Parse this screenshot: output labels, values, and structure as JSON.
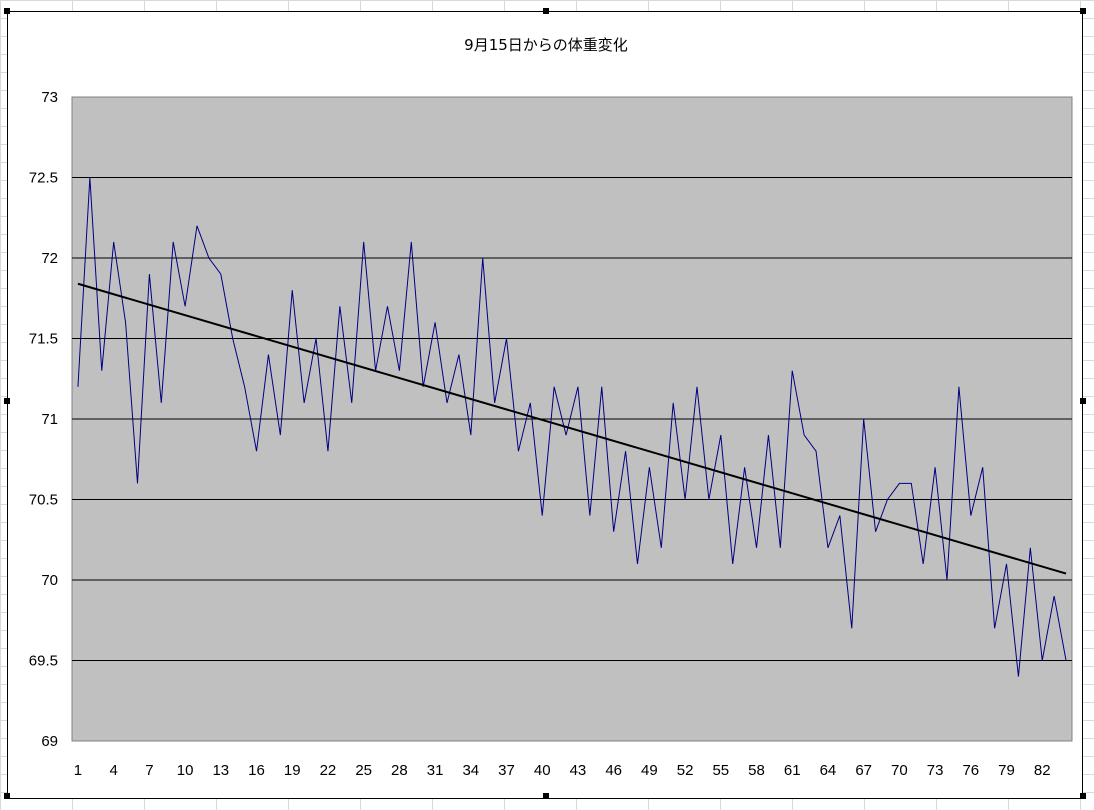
{
  "chart_data": {
    "type": "line",
    "title": "9月15日からの体重変化",
    "xlabel": "",
    "ylabel": "",
    "ylim": [
      69,
      73
    ],
    "y_ticks": [
      "73",
      "72.5",
      "72",
      "71.5",
      "71",
      "70.5",
      "70",
      "69.5",
      "69"
    ],
    "x_ticks": [
      "1",
      "4",
      "7",
      "10",
      "13",
      "16",
      "19",
      "22",
      "25",
      "28",
      "31",
      "34",
      "37",
      "40",
      "43",
      "46",
      "49",
      "52",
      "55",
      "58",
      "61",
      "64",
      "67",
      "70",
      "73",
      "76",
      "79",
      "82"
    ],
    "grid": "horizontal",
    "legend": "none",
    "plot_background": "#c0c0c0",
    "series": [
      {
        "color": "#000080",
        "x": [
          1,
          2,
          3,
          4,
          5,
          6,
          7,
          8,
          9,
          10,
          11,
          12,
          13,
          14,
          15,
          16,
          17,
          18,
          19,
          20,
          21,
          22,
          23,
          24,
          25,
          26,
          27,
          28,
          29,
          30,
          31,
          32,
          33,
          34,
          35,
          36,
          37,
          38,
          39,
          40,
          41,
          42,
          43,
          44,
          45,
          46,
          47,
          48,
          49,
          50,
          51,
          52,
          53,
          54,
          55,
          56,
          57,
          58,
          59,
          60,
          61,
          62,
          63,
          64,
          65,
          66,
          67,
          68,
          69,
          70,
          71,
          72,
          73,
          74,
          75,
          76,
          77,
          78,
          79,
          80,
          81,
          82,
          83,
          84
        ],
        "values": [
          71.2,
          72.5,
          71.3,
          72.1,
          71.6,
          70.6,
          71.9,
          71.1,
          72.1,
          71.7,
          72.2,
          72.0,
          71.9,
          71.5,
          71.2,
          70.8,
          71.4,
          70.9,
          71.8,
          71.1,
          71.5,
          70.8,
          71.7,
          71.1,
          72.1,
          71.3,
          71.7,
          71.3,
          72.1,
          71.2,
          71.6,
          71.1,
          71.4,
          70.9,
          72.0,
          71.1,
          71.5,
          70.8,
          71.1,
          70.4,
          71.2,
          70.9,
          71.2,
          70.4,
          71.2,
          70.3,
          70.8,
          70.1,
          70.7,
          70.2,
          71.1,
          70.5,
          71.2,
          70.5,
          70.9,
          70.1,
          70.7,
          70.2,
          70.9,
          70.2,
          71.3,
          70.9,
          70.8,
          70.2,
          70.4,
          69.7,
          71.0,
          70.3,
          70.5,
          70.6,
          70.6,
          70.1,
          70.7,
          70.0,
          71.2,
          70.4,
          70.7,
          69.7,
          70.1,
          69.4,
          70.2,
          69.5,
          69.9,
          69.5
        ]
      }
    ],
    "trendline": {
      "type": "linear",
      "color": "#000000",
      "x": [
        1,
        84
      ],
      "values": [
        71.84,
        70.04
      ]
    }
  }
}
